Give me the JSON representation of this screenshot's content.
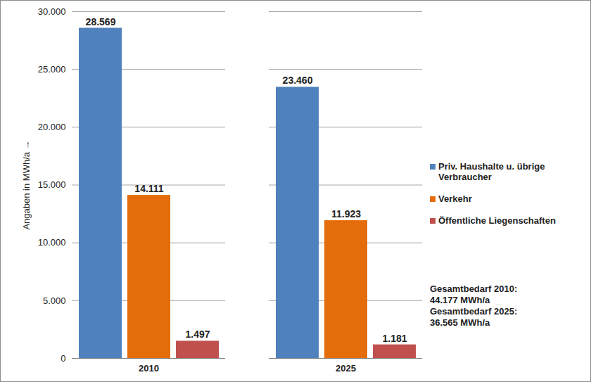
{
  "chart_data": {
    "type": "bar",
    "y_label": "Angaben in MWh/a",
    "categories": [
      "2010",
      "2025"
    ],
    "series": [
      {
        "name": "Priv. Haushalte u. übrige Verbraucher",
        "color": "#4f81bd",
        "values": [
          28569,
          23460
        ],
        "value_labels": [
          "28.569",
          "23.460"
        ]
      },
      {
        "name": "Verkehr",
        "color": "#e46c0a",
        "values": [
          14111,
          11923
        ],
        "value_labels": [
          "14.111",
          "11.923"
        ]
      },
      {
        "name": "Öffentliche Liegenschaften",
        "color": "#c0504d",
        "values": [
          1497,
          1181
        ],
        "value_labels": [
          "1.497",
          "1.181"
        ]
      }
    ],
    "ylim": [
      0,
      30000
    ],
    "yticks": [
      0,
      {
        "value": 5000,
        "label": "5.000"
      },
      {
        "value": 10000,
        "label": "10.000"
      },
      {
        "value": 15000,
        "label": "15.000"
      },
      {
        "value": 20000,
        "label": "20.000"
      },
      {
        "value": 25000,
        "label": "25.000"
      },
      {
        "value": 30000,
        "label": "30.000"
      }
    ],
    "grid": true,
    "legend": "right",
    "data_labels": true,
    "annotations": [
      "Gesamtbedarf 2010:",
      "44.177 MWh/a",
      "Gesamtbedarf 2025:",
      "36.565 MWh/a"
    ]
  }
}
